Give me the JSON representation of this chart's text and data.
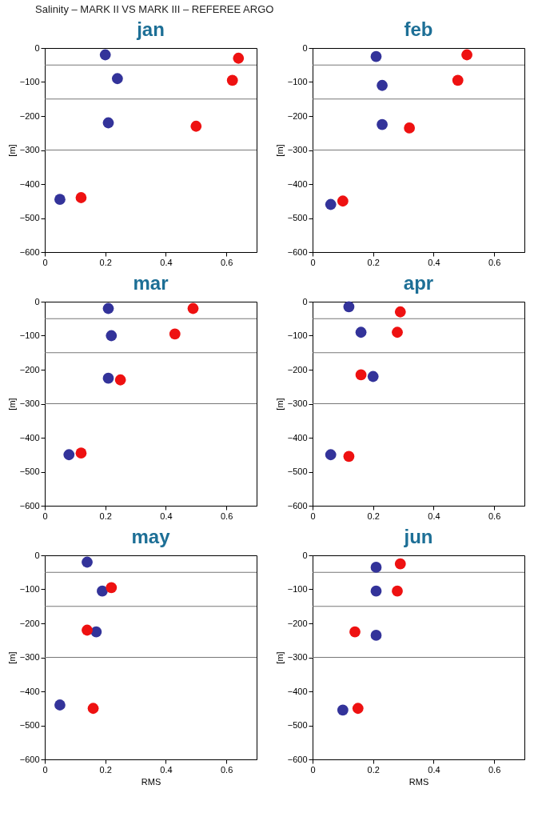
{
  "chart_data": [
    {
      "type": "scatter",
      "title": "jan",
      "ylabel": "[m]",
      "annotations": [
        "Salinity – MARK II VS MARK III – REFEREE ARGO"
      ],
      "xlim": [
        0,
        0.7
      ],
      "xticks": [
        0,
        0.2,
        0.4,
        0.6
      ],
      "ylim": [
        -600,
        0
      ],
      "yticks": [
        -600,
        -500,
        -400,
        -300,
        -200,
        -100,
        0
      ],
      "grid": false,
      "marker": "circle",
      "ref_lines": [
        {
          "axis": "y",
          "value": -50,
          "label": null
        },
        {
          "axis": "y",
          "value": -150,
          "label": null
        },
        {
          "axis": "y",
          "value": -300,
          "label": null
        }
      ],
      "series": [
        {
          "color": "#33339a",
          "x": [
            0.2,
            0.24,
            0.21,
            0.05
          ],
          "values": [
            -20,
            -90,
            -220,
            -445
          ]
        },
        {
          "color": "#ee1111",
          "x": [
            0.64,
            0.62,
            0.5,
            0.12
          ],
          "values": [
            -30,
            -95,
            -230,
            -440
          ]
        }
      ]
    },
    {
      "type": "scatter",
      "title": "feb",
      "ylabel": "[m]",
      "xlim": [
        0,
        0.7
      ],
      "xticks": [
        0,
        0.2,
        0.4,
        0.6
      ],
      "ylim": [
        -600,
        0
      ],
      "yticks": [
        -600,
        -500,
        -400,
        -300,
        -200,
        -100,
        0
      ],
      "grid": false,
      "marker": "circle",
      "ref_lines": [
        {
          "axis": "y",
          "value": -50,
          "label": null
        },
        {
          "axis": "y",
          "value": -150,
          "label": null
        },
        {
          "axis": "y",
          "value": -300,
          "label": null
        }
      ],
      "series": [
        {
          "color": "#33339a",
          "x": [
            0.21,
            0.23,
            0.23,
            0.06
          ],
          "values": [
            -25,
            -110,
            -225,
            -460
          ]
        },
        {
          "color": "#ee1111",
          "x": [
            0.51,
            0.48,
            0.32,
            0.1
          ],
          "values": [
            -20,
            -95,
            -235,
            -450
          ]
        }
      ]
    },
    {
      "type": "scatter",
      "title": "mar",
      "ylabel": "[m]",
      "xlim": [
        0,
        0.7
      ],
      "xticks": [
        0,
        0.2,
        0.4,
        0.6
      ],
      "ylim": [
        -600,
        0
      ],
      "yticks": [
        -600,
        -500,
        -400,
        -300,
        -200,
        -100,
        0
      ],
      "grid": false,
      "marker": "circle",
      "ref_lines": [
        {
          "axis": "y",
          "value": -50,
          "label": null
        },
        {
          "axis": "y",
          "value": -150,
          "label": null
        },
        {
          "axis": "y",
          "value": -300,
          "label": null
        }
      ],
      "series": [
        {
          "color": "#33339a",
          "x": [
            0.21,
            0.22,
            0.21,
            0.08
          ],
          "values": [
            -20,
            -100,
            -225,
            -450
          ]
        },
        {
          "color": "#ee1111",
          "x": [
            0.49,
            0.43,
            0.25,
            0.12
          ],
          "values": [
            -20,
            -95,
            -230,
            -445
          ]
        }
      ]
    },
    {
      "type": "scatter",
      "title": "apr",
      "ylabel": "[m]",
      "xlim": [
        0,
        0.7
      ],
      "xticks": [
        0,
        0.2,
        0.4,
        0.6
      ],
      "ylim": [
        -600,
        0
      ],
      "yticks": [
        -600,
        -500,
        -400,
        -300,
        -200,
        -100,
        0
      ],
      "grid": false,
      "marker": "circle",
      "ref_lines": [
        {
          "axis": "y",
          "value": -50,
          "label": null
        },
        {
          "axis": "y",
          "value": -150,
          "label": null
        },
        {
          "axis": "y",
          "value": -300,
          "label": null
        }
      ],
      "series": [
        {
          "color": "#33339a",
          "x": [
            0.12,
            0.16,
            0.2,
            0.06
          ],
          "values": [
            -15,
            -90,
            -220,
            -450
          ]
        },
        {
          "color": "#ee1111",
          "x": [
            0.29,
            0.28,
            0.16,
            0.12
          ],
          "values": [
            -30,
            -90,
            -215,
            -455
          ]
        }
      ]
    },
    {
      "type": "scatter",
      "title": "may",
      "ylabel": "[m]",
      "xlabel": "RMS",
      "xlim": [
        0,
        0.7
      ],
      "xticks": [
        0,
        0.2,
        0.4,
        0.6
      ],
      "ylim": [
        -600,
        0
      ],
      "yticks": [
        -600,
        -500,
        -400,
        -300,
        -200,
        -100,
        0
      ],
      "grid": false,
      "marker": "circle",
      "ref_lines": [
        {
          "axis": "y",
          "value": -50,
          "label": null
        },
        {
          "axis": "y",
          "value": -150,
          "label": null
        },
        {
          "axis": "y",
          "value": -300,
          "label": null
        }
      ],
      "series": [
        {
          "color": "#33339a",
          "x": [
            0.14,
            0.19,
            0.17,
            0.05
          ],
          "values": [
            -20,
            -105,
            -225,
            -440
          ]
        },
        {
          "color": "#ee1111",
          "x": [
            0.22,
            0.14,
            0.16
          ],
          "values": [
            -95,
            -220,
            -450
          ]
        }
      ]
    },
    {
      "type": "scatter",
      "title": "jun",
      "ylabel": "[m]",
      "xlabel": "RMS",
      "xlim": [
        0,
        0.7
      ],
      "xticks": [
        0,
        0.2,
        0.4,
        0.6
      ],
      "ylim": [
        -600,
        0
      ],
      "yticks": [
        -600,
        -500,
        -400,
        -300,
        -200,
        -100,
        0
      ],
      "grid": false,
      "marker": "circle",
      "ref_lines": [
        {
          "axis": "y",
          "value": -50,
          "label": null
        },
        {
          "axis": "y",
          "value": -150,
          "label": null
        },
        {
          "axis": "y",
          "value": -300,
          "label": null
        }
      ],
      "series": [
        {
          "color": "#33339a",
          "x": [
            0.21,
            0.21,
            0.21,
            0.1
          ],
          "values": [
            -35,
            -105,
            -235,
            -455
          ]
        },
        {
          "color": "#ee1111",
          "x": [
            0.29,
            0.28,
            0.14,
            0.15
          ],
          "values": [
            -25,
            -105,
            -225,
            -450
          ]
        }
      ]
    }
  ]
}
